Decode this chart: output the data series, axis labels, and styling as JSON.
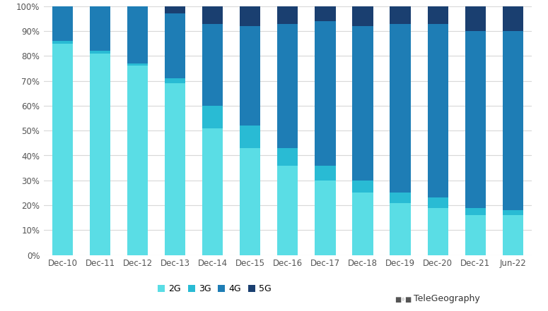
{
  "categories": [
    "Dec-10",
    "Dec-11",
    "Dec-12",
    "Dec-13",
    "Dec-14",
    "Dec-15",
    "Dec-16",
    "Dec-17",
    "Dec-18",
    "Dec-19",
    "Dec-20",
    "Dec-21",
    "Jun-22"
  ],
  "2G": [
    85,
    81,
    76,
    69,
    51,
    43,
    36,
    30,
    25,
    21,
    19,
    16,
    16
  ],
  "3G": [
    1,
    1,
    1,
    2,
    9,
    9,
    7,
    6,
    5,
    4,
    4,
    3,
    2
  ],
  "4G": [
    14,
    18,
    23,
    26,
    33,
    40,
    50,
    58,
    62,
    68,
    70,
    71,
    72
  ],
  "5G": [
    0,
    0,
    0,
    3,
    7,
    8,
    7,
    6,
    8,
    7,
    7,
    10,
    10
  ],
  "colors": {
    "2G": "#5ADDE5",
    "3G": "#29BBD4",
    "4G": "#1E7DB5",
    "5G": "#1A3F70"
  },
  "background_color": "#ffffff",
  "grid_color": "#d8d8d8",
  "bar_width": 0.55,
  "figsize": [
    7.75,
    4.41
  ],
  "dpi": 100
}
